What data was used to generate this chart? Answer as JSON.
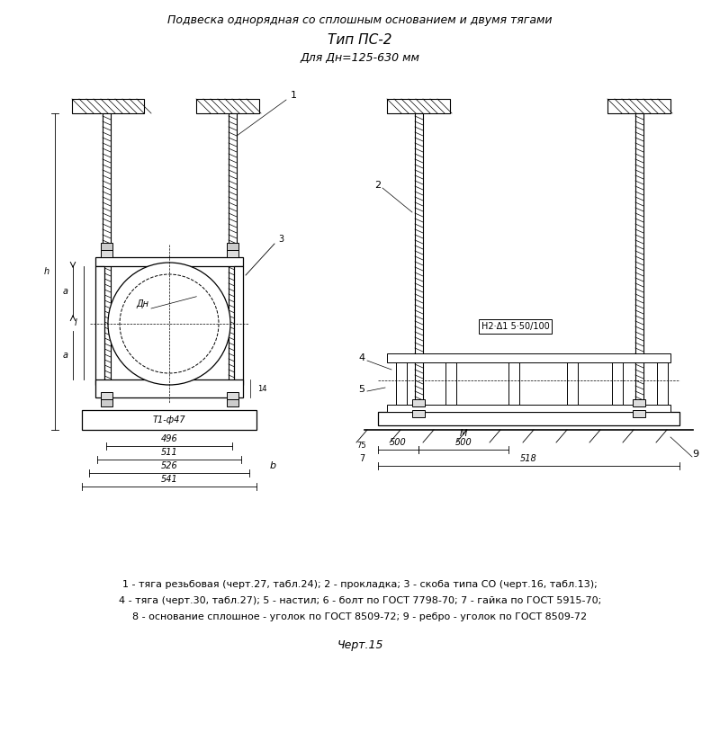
{
  "title_line1": "Подвеска однорядная со сплошным основанием и двумя тягами",
  "title_line2": "Тип ПС-2",
  "title_line3": "Для Дн=125-630 мм",
  "caption_line1": "1 - тяга резьбовая (черт.27, табл.24); 2 - прокладка; 3 - скоба типа СО (черт.16, табл.13);",
  "caption_line2": "4 - тяга (черт.30, табл.27); 5 - настил; 6 - болт по ГОСТ 7798-70; 7 - гайка по ГОСТ 5915-70;",
  "caption_line3": "8 - основание сплошное - уголок по ГОСТ 8509-72; 9 - ребро - уголок по ГОСТ 8509-72",
  "drawing_label": "Черт.15",
  "bg_color": "#ffffff",
  "line_color": "#000000"
}
